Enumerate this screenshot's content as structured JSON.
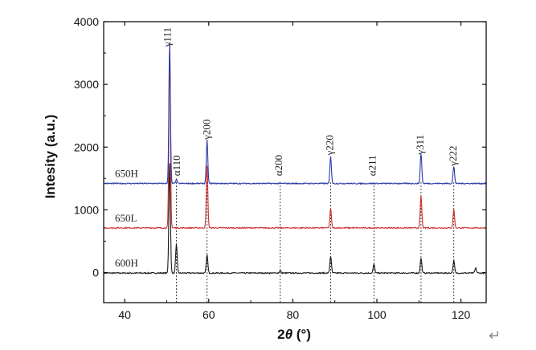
{
  "chart_data": {
    "type": "line",
    "xlabel_prefix": "2",
    "xlabel_symbol": "θ",
    "xlabel_unit": " (°)",
    "ylabel": "Intesity (a.u.)",
    "xlim": [
      35,
      126
    ],
    "ylim": [
      -480,
      4000
    ],
    "xticks": [
      40,
      60,
      80,
      100,
      120
    ],
    "yticks": [
      0,
      1000,
      2000,
      3000,
      4000
    ],
    "grid": false,
    "series": [
      {
        "name": "600H",
        "color": "#1a1a1a",
        "baseline": -8,
        "peaks": [
          {
            "x": 50.7,
            "height": 1760
          },
          {
            "x": 52.3,
            "height": 460
          },
          {
            "x": 59.6,
            "height": 300
          },
          {
            "x": 77.0,
            "height": 40
          },
          {
            "x": 89.0,
            "height": 270
          },
          {
            "x": 99.3,
            "height": 140
          },
          {
            "x": 110.5,
            "height": 240
          },
          {
            "x": 118.3,
            "height": 200
          },
          {
            "x": 123.5,
            "height": 80
          }
        ]
      },
      {
        "name": "650L",
        "color": "#d03030",
        "baseline": 712,
        "peaks": [
          {
            "x": 50.7,
            "height": 2980
          },
          {
            "x": 59.6,
            "height": 1000
          },
          {
            "x": 89.0,
            "height": 310
          },
          {
            "x": 110.5,
            "height": 520
          },
          {
            "x": 118.3,
            "height": 300
          }
        ]
      },
      {
        "name": "650H",
        "color": "#2a3aa8",
        "baseline": 1420,
        "peaks": [
          {
            "x": 50.7,
            "height": 2250
          },
          {
            "x": 52.3,
            "height": 60
          },
          {
            "x": 59.6,
            "height": 690
          },
          {
            "x": 89.0,
            "height": 430
          },
          {
            "x": 110.5,
            "height": 480
          },
          {
            "x": 118.3,
            "height": 270
          }
        ]
      }
    ],
    "annotations": [
      {
        "label": "γ111",
        "x": 51.0,
        "y": 3600
      },
      {
        "label": "α110",
        "x": 53.2,
        "y": 1540
      },
      {
        "label": "γ200",
        "x": 60.3,
        "y": 2120
      },
      {
        "label": "α200",
        "x": 77.4,
        "y": 1540
      },
      {
        "label": "γ220",
        "x": 89.6,
        "y": 1870
      },
      {
        "label": "α211",
        "x": 99.7,
        "y": 1540
      },
      {
        "label": "γ311",
        "x": 111.1,
        "y": 1880
      },
      {
        "label": "γ222",
        "x": 118.9,
        "y": 1700
      }
    ],
    "reference_lines": [
      52.3,
      59.6,
      77.0,
      89.0,
      99.3,
      110.5,
      118.3
    ]
  },
  "return_symbol": "↵"
}
